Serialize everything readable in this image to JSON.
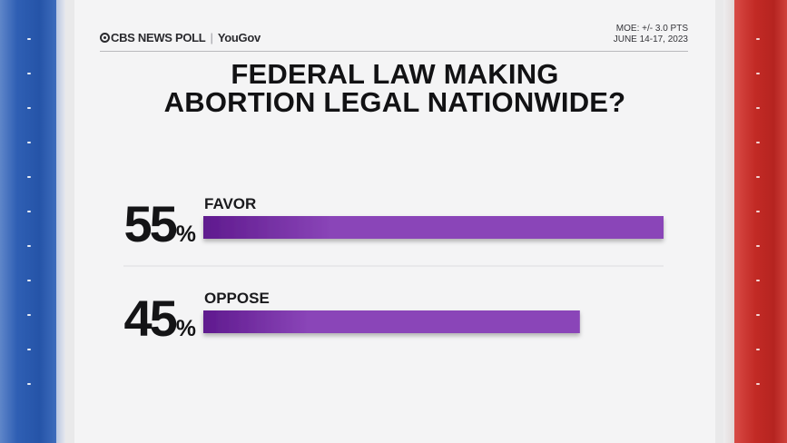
{
  "header": {
    "brand": "CBS NEWS POLL",
    "partner": "YouGov",
    "moe": "MOE: +/- 3.0 PTS",
    "dates": "JUNE 14-17, 2023"
  },
  "title_line1": "FEDERAL LAW MAKING",
  "title_line2": "ABORTION LEGAL NATIONWIDE?",
  "colors": {
    "bar": "#8a45b8",
    "bar_dark": "#5f1a8e",
    "left_stripe": "#2554a8",
    "right_stripe": "#c22a25"
  },
  "chart_data": {
    "type": "bar",
    "orientation": "horizontal",
    "categories": [
      "FAVOR",
      "OPPOSE"
    ],
    "values": [
      55,
      45
    ],
    "unit": "%",
    "title": "FEDERAL LAW MAKING ABORTION LEGAL NATIONWIDE?",
    "xlim": [
      0,
      55
    ],
    "grid": false,
    "legend": "none"
  }
}
